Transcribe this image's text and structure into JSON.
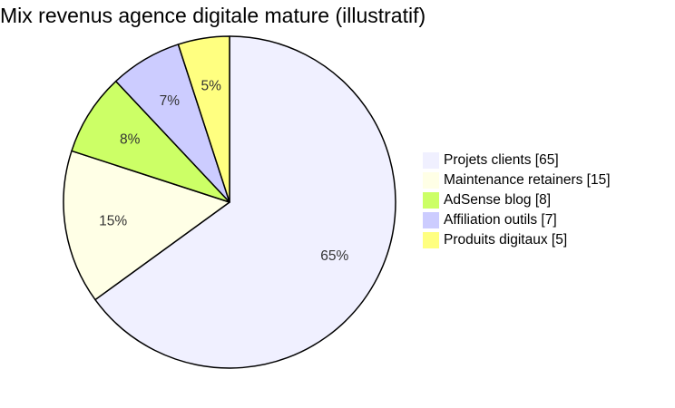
{
  "chart_data": {
    "type": "pie",
    "title": "Mix revenus agence digitale mature (illustratif)",
    "start_angle_deg": 0,
    "direction": "clockwise",
    "legend_position": "right",
    "slices": [
      {
        "label": "Projets clients",
        "value": 65,
        "percent_label": "65%",
        "legend_label": "Projets clients [65]",
        "color": "#f0f0ff"
      },
      {
        "label": "Maintenance retainers",
        "value": 15,
        "percent_label": "15%",
        "legend_label": "Maintenance retainers [15]",
        "color": "#ffffe6"
      },
      {
        "label": "AdSense blog",
        "value": 8,
        "percent_label": "8%",
        "legend_label": "AdSense blog [8]",
        "color": "#ccff66"
      },
      {
        "label": "Affiliation outils",
        "value": 7,
        "percent_label": "7%",
        "legend_label": "Affiliation outils [7]",
        "color": "#ccccff"
      },
      {
        "label": "Produits digitaux",
        "value": 5,
        "percent_label": "5%",
        "legend_label": "Produits digitaux [5]",
        "color": "#ffff80"
      }
    ]
  }
}
